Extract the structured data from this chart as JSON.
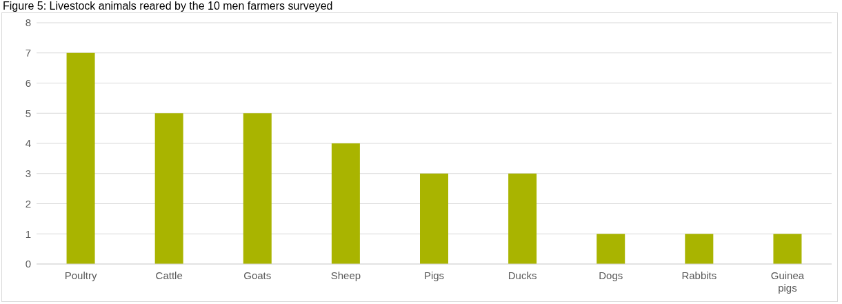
{
  "chart_data": {
    "type": "bar",
    "title": "Figure 5: Livestock animals reared by the 10 men farmers surveyed",
    "categories": [
      "Poultry",
      "Cattle",
      "Goats",
      "Sheep",
      "Pigs",
      "Ducks",
      "Dogs",
      "Rabbits",
      "Guinea pigs"
    ],
    "values": [
      7,
      5,
      5,
      4,
      3,
      3,
      1,
      1,
      1
    ],
    "color": "#a9b400",
    "ylim": [
      0,
      8
    ],
    "yticks": [
      0,
      1,
      2,
      3,
      4,
      5,
      6,
      7,
      8
    ],
    "grid": "y",
    "legend": false
  }
}
